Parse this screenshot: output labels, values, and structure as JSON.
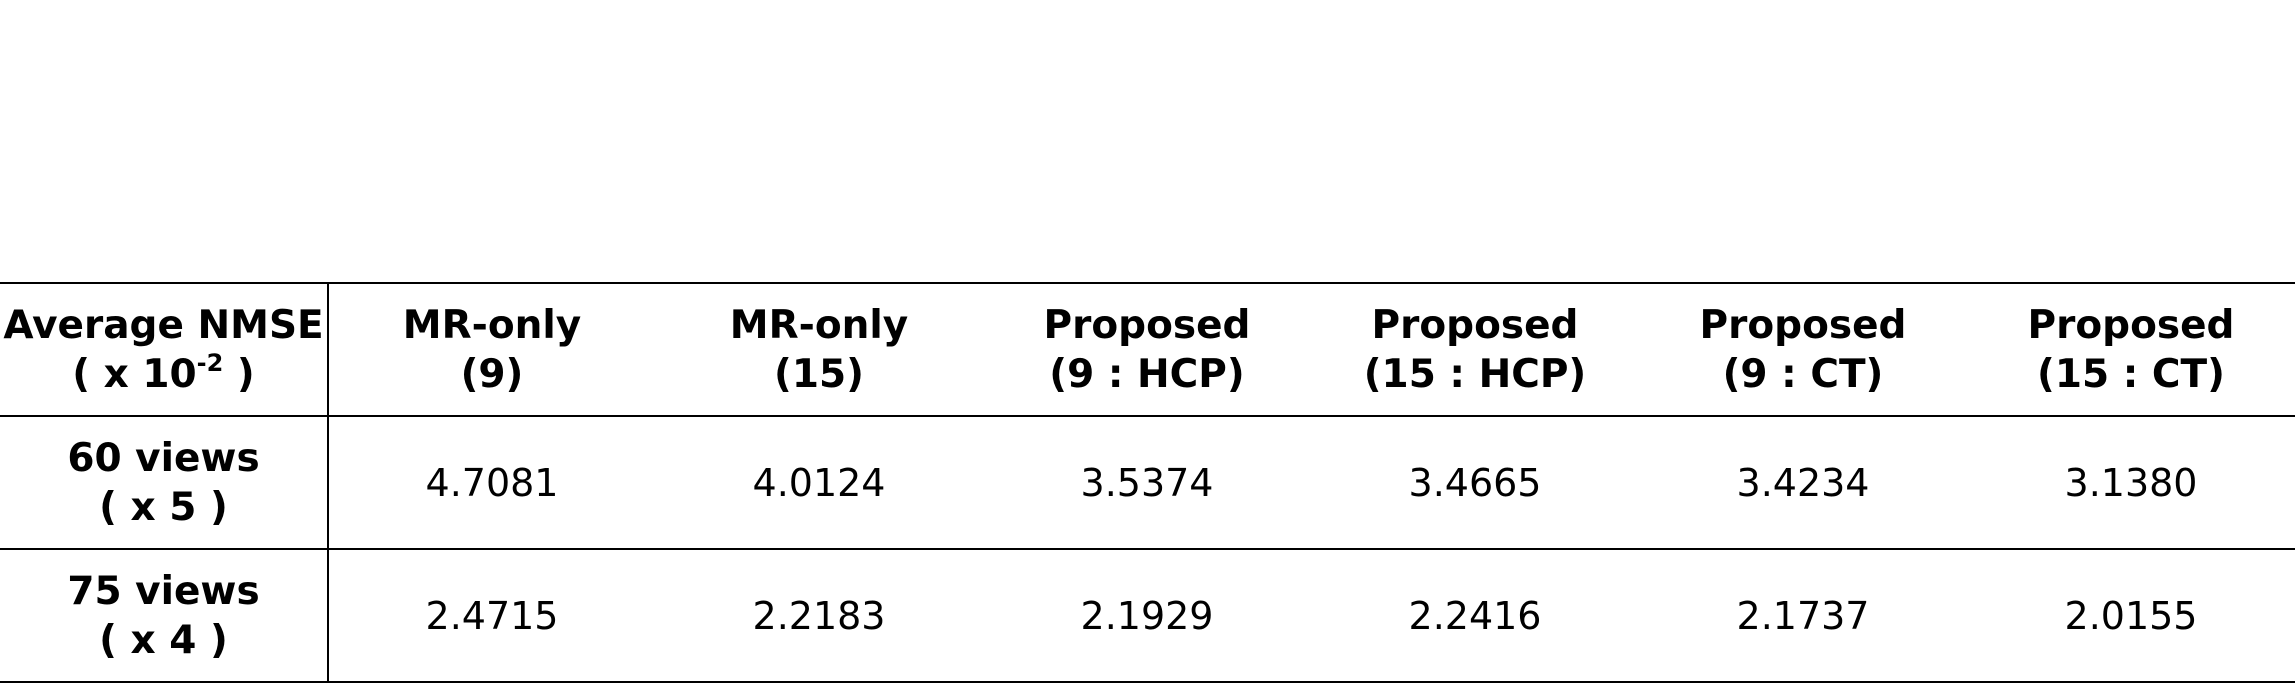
{
  "table": {
    "corner": {
      "line1": "Average NMSE",
      "line2_pre": "( x 10",
      "line2_exp": "-2",
      "line2_post": " )"
    },
    "columns": [
      {
        "line1": "MR-only",
        "line2": "(9)"
      },
      {
        "line1": "MR-only",
        "line2": "(15)"
      },
      {
        "line1": "Proposed",
        "line2": "(9 : HCP)"
      },
      {
        "line1": "Proposed",
        "line2": "(15 : HCP)"
      },
      {
        "line1": "Proposed",
        "line2": "(9 : CT)"
      },
      {
        "line1": "Proposed",
        "line2": "(15 : CT)"
      }
    ],
    "rows": [
      {
        "label_line1": "60 views",
        "label_line2": "( x 5 )",
        "values": [
          "4.7081",
          "4.0124",
          "3.5374",
          "3.4665",
          "3.4234",
          "3.1380"
        ]
      },
      {
        "label_line1": "75 views",
        "label_line2": "( x 4 )",
        "values": [
          "2.4715",
          "2.2183",
          "2.1929",
          "2.2416",
          "2.1737",
          "2.0155"
        ]
      }
    ]
  }
}
